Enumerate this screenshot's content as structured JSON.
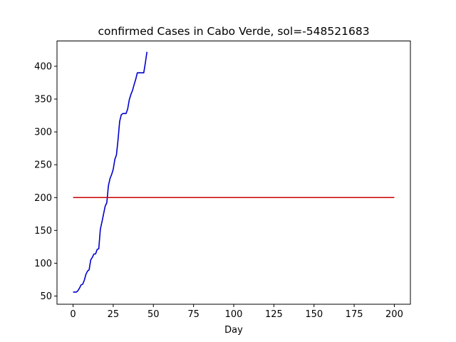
{
  "chart_data": {
    "type": "line",
    "title": "confirmed Cases in Cabo Verde, sol=-548521683",
    "xlabel": "Day",
    "ylabel": "",
    "xlim": [
      -10,
      210
    ],
    "ylim": [
      37.5,
      438.5
    ],
    "xticks": [
      0,
      25,
      50,
      75,
      100,
      125,
      150,
      175,
      200
    ],
    "yticks": [
      50,
      100,
      150,
      200,
      250,
      300,
      350,
      400
    ],
    "grid": false,
    "series": [
      {
        "color": "#0000cc",
        "x": [
          0,
          1,
          2,
          3,
          4,
          5,
          6,
          7,
          8,
          9,
          10,
          11,
          12,
          13,
          14,
          15,
          16,
          17,
          18,
          19,
          20,
          21,
          22,
          23,
          24,
          25,
          26,
          27,
          28,
          29,
          30,
          31,
          32,
          33,
          34,
          35,
          36,
          37,
          38,
          39,
          40,
          41,
          42,
          43,
          44,
          45,
          46
        ],
        "values": [
          56,
          56,
          56,
          58,
          62,
          67,
          68,
          74,
          83,
          88,
          90,
          105,
          109,
          114,
          114,
          121,
          122,
          152,
          163,
          175,
          187,
          192,
          218,
          229,
          235,
          243,
          258,
          265,
          288,
          316,
          326,
          328,
          328,
          328,
          335,
          349,
          357,
          363,
          372,
          380,
          390,
          390,
          390,
          390,
          390,
          405,
          422
        ]
      },
      {
        "color": "#cc0000",
        "x": [
          0,
          200
        ],
        "values": [
          200,
          200
        ]
      }
    ]
  }
}
